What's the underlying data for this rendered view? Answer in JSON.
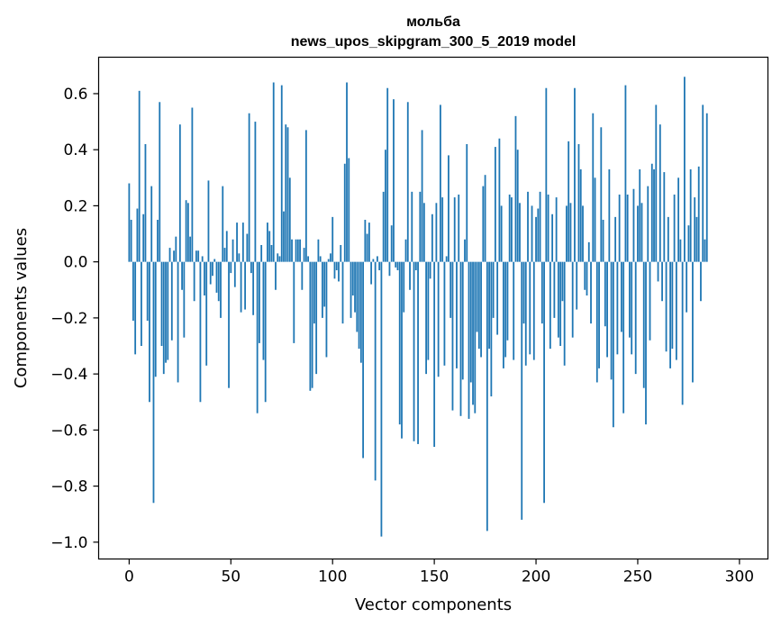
{
  "chart_data": {
    "type": "bar",
    "title": "мольба",
    "subtitle": "news_upos_skipgram_300_5_2019 model",
    "xlabel": "Vector components",
    "ylabel": "Components values",
    "xlim": [
      -15,
      314
    ],
    "ylim": [
      -1.06,
      0.73
    ],
    "xticks": [
      0,
      50,
      100,
      150,
      200,
      250,
      300
    ],
    "yticks": [
      -1.0,
      -0.8,
      -0.6,
      -0.4,
      -0.2,
      0.0,
      0.2,
      0.4,
      0.6
    ],
    "ytick_labels": [
      "−1.0",
      "−0.8",
      "−0.6",
      "−0.4",
      "−0.2",
      "0.0",
      "0.2",
      "0.4",
      "0.6"
    ],
    "grid": false,
    "bar_color": "#1f77b4",
    "values": [
      0.28,
      0.15,
      -0.21,
      -0.33,
      0.19,
      0.61,
      -0.3,
      0.17,
      0.42,
      -0.21,
      -0.5,
      0.27,
      -0.86,
      -0.41,
      0.15,
      0.57,
      -0.3,
      -0.4,
      -0.36,
      -0.35,
      0.05,
      -0.28,
      0.04,
      0.09,
      -0.43,
      0.49,
      -0.1,
      -0.27,
      0.22,
      0.21,
      0.09,
      0.55,
      -0.14,
      0.04,
      0.04,
      -0.5,
      0.02,
      -0.12,
      -0.37,
      0.29,
      -0.08,
      -0.05,
      0.01,
      -0.11,
      -0.14,
      -0.2,
      0.27,
      0.05,
      0.11,
      -0.45,
      -0.04,
      0.08,
      -0.09,
      0.14,
      0.03,
      -0.18,
      0.14,
      -0.17,
      0.1,
      0.53,
      -0.04,
      -0.19,
      0.5,
      -0.54,
      -0.29,
      0.06,
      -0.35,
      -0.5,
      0.14,
      0.11,
      0.06,
      0.64,
      -0.1,
      0.03,
      0.02,
      0.63,
      0.18,
      0.49,
      0.48,
      0.3,
      0.08,
      -0.29,
      0.08,
      0.08,
      0.08,
      -0.1,
      0.05,
      0.47,
      0.02,
      -0.46,
      -0.45,
      -0.22,
      -0.4,
      0.08,
      0.02,
      -0.2,
      -0.16,
      -0.34,
      0.01,
      0.03,
      0.16,
      -0.06,
      -0.03,
      -0.07,
      0.06,
      -0.22,
      0.35,
      0.64,
      0.37,
      -0.2,
      -0.12,
      -0.18,
      -0.25,
      -0.31,
      -0.36,
      -0.7,
      0.15,
      0.1,
      0.14,
      -0.08,
      0.01,
      -0.78,
      0.02,
      -0.03,
      -0.98,
      0.25,
      0.4,
      0.62,
      -0.05,
      0.13,
      0.58,
      -0.02,
      -0.03,
      -0.58,
      -0.63,
      -0.18,
      0.08,
      0.57,
      -0.1,
      0.25,
      -0.64,
      -0.03,
      -0.65,
      0.25,
      0.47,
      0.21,
      -0.4,
      -0.35,
      -0.06,
      0.17,
      -0.66,
      0.21,
      -0.41,
      0.56,
      0.23,
      -0.37,
      0.02,
      0.38,
      -0.2,
      -0.53,
      0.23,
      -0.38,
      0.24,
      -0.55,
      -0.42,
      0.08,
      0.42,
      -0.56,
      -0.43,
      -0.51,
      -0.54,
      -0.25,
      -0.31,
      -0.34,
      0.27,
      0.31,
      -0.96,
      -0.31,
      -0.48,
      -0.2,
      0.41,
      -0.26,
      0.44,
      0.2,
      -0.38,
      -0.34,
      -0.28,
      0.24,
      0.23,
      -0.35,
      0.52,
      0.4,
      0.21,
      -0.92,
      -0.22,
      -0.37,
      0.25,
      -0.33,
      0.2,
      -0.35,
      0.16,
      0.19,
      0.25,
      -0.22,
      -0.86,
      0.62,
      0.24,
      -0.31,
      0.17,
      -0.2,
      0.23,
      -0.27,
      -0.3,
      -0.14,
      -0.37,
      0.2,
      0.43,
      0.21,
      -0.27,
      0.62,
      -0.17,
      0.42,
      0.33,
      0.2,
      -0.1,
      -0.12,
      0.07,
      -0.22,
      0.53,
      0.3,
      -0.43,
      -0.38,
      0.48,
      0.15,
      -0.23,
      -0.34,
      0.33,
      -0.42,
      -0.59,
      0.16,
      -0.33,
      0.24,
      -0.25,
      -0.54,
      0.63,
      0.24,
      -0.27,
      -0.33,
      0.26,
      -0.4,
      0.2,
      0.33,
      0.21,
      -0.45,
      -0.58,
      0.27,
      -0.28,
      0.35,
      0.33,
      0.56,
      -0.07,
      0.49,
      -0.14,
      0.32,
      -0.32,
      0.16,
      -0.38,
      -0.31,
      0.24,
      -0.35,
      0.3,
      0.08,
      -0.51,
      0.66,
      -0.18,
      0.13,
      0.33,
      -0.43,
      0.23,
      0.16,
      0.34,
      -0.14,
      0.56,
      0.08,
      0.53
    ]
  }
}
